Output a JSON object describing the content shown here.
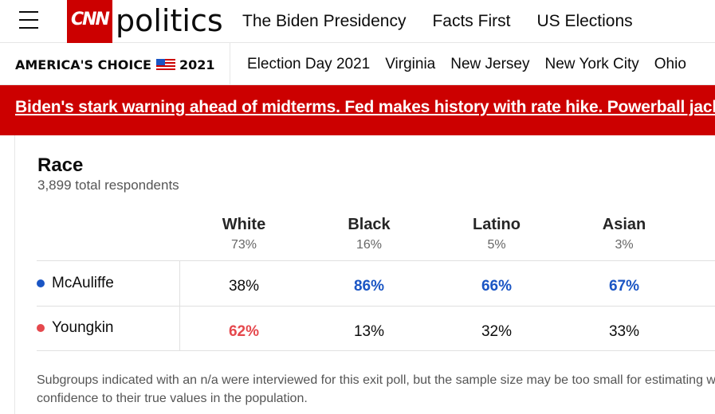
{
  "nav": {
    "logo_text": "CNN",
    "section": "politics",
    "links": [
      "The Biden Presidency",
      "Facts First",
      "US Elections"
    ]
  },
  "subnav": {
    "brand_left": "AMERICA'S CHOICE",
    "brand_year": "2021",
    "links": [
      "Election Day 2021",
      "Virginia",
      "New Jersey",
      "New York City",
      "Ohio"
    ]
  },
  "banner": {
    "text": "Biden's stark warning ahead of midterms. Fed makes history with rate hike. Powerball jackpot"
  },
  "poll": {
    "title": "Race",
    "respondents": "3,899 total respondents",
    "columns": [
      {
        "label": "White",
        "share": "73%"
      },
      {
        "label": "Black",
        "share": "16%"
      },
      {
        "label": "Latino",
        "share": "5%"
      },
      {
        "label": "Asian",
        "share": "3%"
      }
    ],
    "rows": [
      {
        "candidate": "McAuliffe",
        "color": "#1a55c4",
        "values": [
          "38%",
          "86%",
          "66%",
          "67%"
        ],
        "winner": [
          false,
          true,
          true,
          true
        ]
      },
      {
        "candidate": "Youngkin",
        "color": "#e5484d",
        "values": [
          "62%",
          "13%",
          "32%",
          "33%"
        ],
        "winner": [
          true,
          false,
          false,
          false
        ]
      }
    ],
    "footnote_line1": "Subgroups indicated with an n/a were interviewed for this exit poll, but the sample size may be too small for estimating with",
    "footnote_line2": "confidence to their true values in the population."
  },
  "colors": {
    "cnn_red": "#cc0000",
    "dem_blue": "#1a55c4",
    "rep_red": "#e5484d"
  }
}
